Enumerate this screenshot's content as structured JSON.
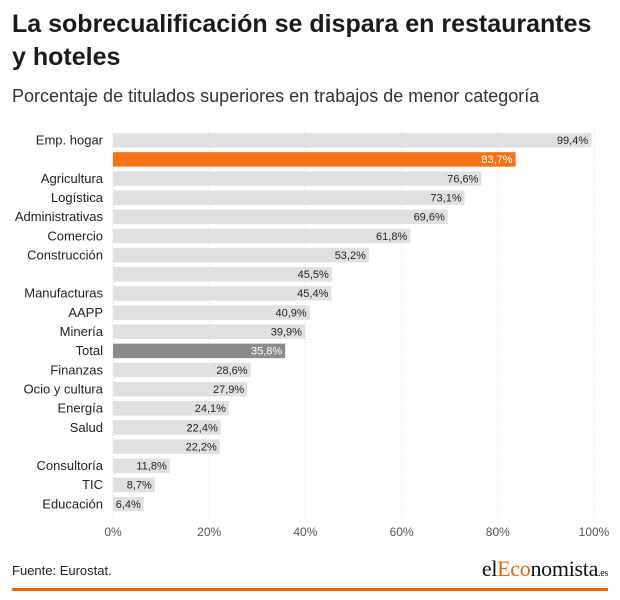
{
  "title": "La sobrecualificación se dispara en restaurantes y hoteles",
  "subtitle": "Porcentaje de titulados superiores en trabajos de menor categoría",
  "source": "Fuente: Eurostat.",
  "logo": {
    "part1": "el",
    "part2": "Eco",
    "part3": "nomista",
    "part4": ".es"
  },
  "colors": {
    "default": "#e0e0e0",
    "highlight": "#f97316",
    "total": "#8a8a8a",
    "accent": "#e8640c"
  },
  "chart_data": {
    "type": "bar",
    "orientation": "horizontal",
    "categories": [
      "Emp. hogar",
      "",
      "Agricultura",
      "Logística",
      "Administrativas",
      "Comercio",
      "Construcción",
      "",
      "Manufacturas",
      "AAPP",
      "Minería",
      "Total",
      "Finanzas",
      "Ocio y cultura",
      "Energía",
      "Salud",
      "",
      "Consultoría",
      "TIC",
      "Educación"
    ],
    "values": [
      99.4,
      83.7,
      76.6,
      73.1,
      69.6,
      61.8,
      53.2,
      45.5,
      45.4,
      40.9,
      39.9,
      35.8,
      28.6,
      27.9,
      24.1,
      22.4,
      22.2,
      11.8,
      8.7,
      6.4
    ],
    "value_labels": [
      "99,4%",
      "83,7%",
      "76,6%",
      "73,1%",
      "69,6%",
      "61,8%",
      "53,2%",
      "45,5%",
      "45,4%",
      "40,9%",
      "39,9%",
      "35,8%",
      "28,6%",
      "27,9%",
      "24,1%",
      "22,4%",
      "22,2%",
      "11,8%",
      "8,7%",
      "6,4%"
    ],
    "highlight": [
      1
    ],
    "total_index": 11,
    "xlim": [
      0,
      100
    ],
    "xticks": [
      0,
      20,
      40,
      60,
      80,
      100
    ],
    "xtick_labels": [
      "0%",
      "20%",
      "40%",
      "60%",
      "80%",
      "100%"
    ],
    "grid": true,
    "xlabel": "",
    "ylabel": ""
  }
}
